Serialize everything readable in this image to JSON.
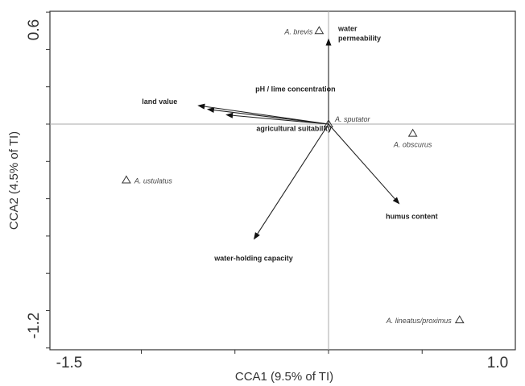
{
  "chart_data": {
    "type": "scatter",
    "title": "",
    "xlabel": "CCA1 (9.5% of TI)",
    "ylabel": "CCA2 (4.5% of TI)",
    "xlim": [
      -1.5,
      1.0
    ],
    "ylim": [
      -1.2,
      0.6
    ],
    "x_tick_labels": [
      "-1.5",
      "1.0"
    ],
    "y_tick_labels": [
      "0.6",
      "-1.2"
    ],
    "grid": false,
    "zero_lines": true,
    "species": [
      {
        "name": "A. brevis",
        "x": -0.05,
        "y": 0.5
      },
      {
        "name": "A. sputator",
        "x": 0.0,
        "y": 0.0
      },
      {
        "name": "A. obscurus",
        "x": 0.45,
        "y": -0.05
      },
      {
        "name": "A. ustulatus",
        "x": -1.08,
        "y": -0.3
      },
      {
        "name": "A. lineatus/proximus",
        "x": 0.7,
        "y": -1.05
      }
    ],
    "environmental_vectors": [
      {
        "name": "water\npermeability",
        "x": 0.0,
        "y": 0.46
      },
      {
        "name": "pH / lime concentration",
        "x": -0.65,
        "y": 0.08
      },
      {
        "name": "land value",
        "x": -0.7,
        "y": 0.1
      },
      {
        "name": "agricultural suitability",
        "x": -0.55,
        "y": 0.05
      },
      {
        "name": "humus content",
        "x": 0.38,
        "y": -0.43
      },
      {
        "name": "water-holding capacity",
        "x": -0.4,
        "y": -0.62
      }
    ]
  }
}
